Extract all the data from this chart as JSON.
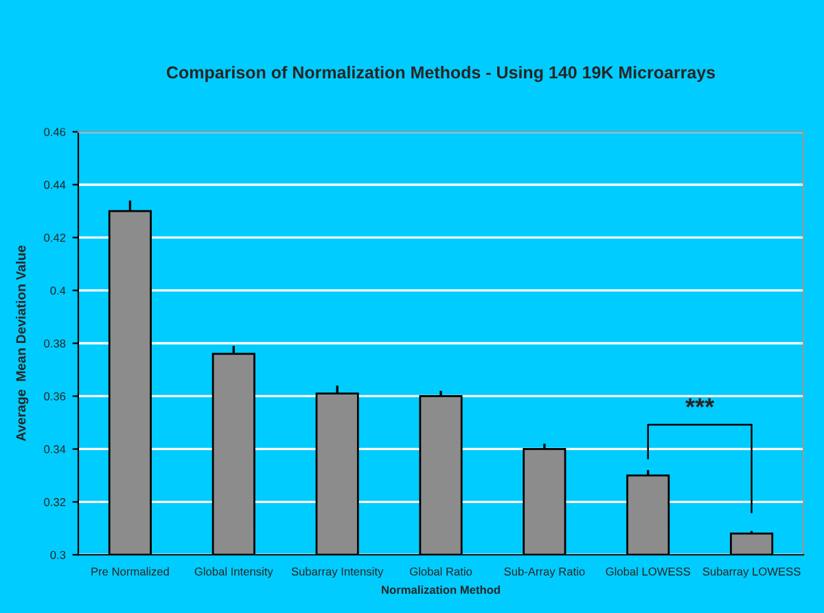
{
  "chart_data": {
    "type": "bar",
    "title": "Comparison of Normalization Methods - Using 140 19K Microarrays",
    "xlabel": "Normalization Method",
    "ylabel": "Average  Mean Deviation Value",
    "categories": [
      "Pre Normalized",
      "Global Intensity",
      "Subarray Intensity",
      "Global Ratio",
      "Sub-Array Ratio",
      "Global LOWESS",
      "Subarray LOWESS"
    ],
    "values": [
      0.43,
      0.376,
      0.361,
      0.36,
      0.34,
      0.33,
      0.308
    ],
    "errors": [
      0.004,
      0.003,
      0.003,
      0.002,
      0.002,
      0.002,
      0.001
    ],
    "color": "#8c8c8c",
    "ylim": [
      0.3,
      0.46
    ],
    "yticks": [
      0.3,
      0.32,
      0.34,
      0.36,
      0.38,
      0.4,
      0.42,
      0.44,
      0.46
    ],
    "grid": "y",
    "legend": false,
    "annotations": [
      "***"
    ]
  }
}
